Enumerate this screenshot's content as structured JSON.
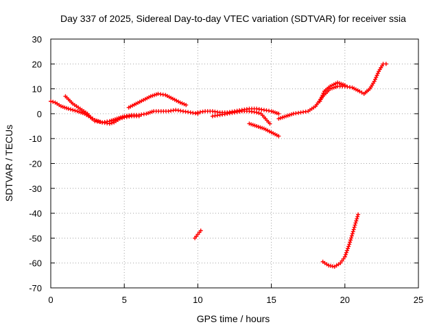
{
  "chart_data": {
    "type": "scatter",
    "title": "Day 337 of 2025, Sidereal Day-to-day VTEC variation (SDTVAR) for receiver ssia",
    "xlabel": "GPS time / hours",
    "ylabel": "SDTVAR / TECUs",
    "xlim": [
      0,
      25
    ],
    "ylim": [
      -70,
      30
    ],
    "x_ticks": [
      0,
      5,
      10,
      15,
      20,
      25
    ],
    "y_ticks": [
      -70,
      -60,
      -50,
      -40,
      -30,
      -20,
      -10,
      0,
      10,
      20,
      30
    ],
    "x_tick_labels": [
      "0",
      "5",
      "10",
      "15",
      "20",
      "25"
    ],
    "y_tick_labels": [
      "-70",
      "-60",
      "-50",
      "-40",
      "-30",
      "-20",
      "-10",
      "0",
      "10",
      "20",
      "30"
    ],
    "grid": true,
    "marker": "plus",
    "color": "#ff0000",
    "series": [
      {
        "name": "track-1",
        "points": [
          [
            0,
            5
          ],
          [
            0.3,
            4.5
          ],
          [
            0.7,
            3
          ],
          [
            1.2,
            2
          ],
          [
            1.8,
            1
          ],
          [
            2.3,
            0
          ],
          [
            2.7,
            -1.5
          ],
          [
            3,
            -2.5
          ],
          [
            3.5,
            -3.5
          ],
          [
            4,
            -4
          ],
          [
            4.3,
            -3.5
          ],
          [
            4.7,
            -2
          ],
          [
            5,
            -1.5
          ],
          [
            5.5,
            -1
          ],
          [
            6,
            -1
          ]
        ]
      },
      {
        "name": "track-2",
        "points": [
          [
            1,
            7
          ],
          [
            1.5,
            4
          ],
          [
            2,
            2
          ],
          [
            2.5,
            0
          ],
          [
            2.8,
            -2
          ]
        ]
      },
      {
        "name": "track-3",
        "points": [
          [
            3,
            -3
          ],
          [
            3.5,
            -3.5
          ],
          [
            4,
            -3
          ],
          [
            4.5,
            -2
          ],
          [
            5,
            -1
          ],
          [
            5.5,
            -0.5
          ],
          [
            6,
            -0.5
          ],
          [
            6.5,
            0
          ],
          [
            7,
            1
          ],
          [
            7.5,
            1
          ],
          [
            8,
            1
          ],
          [
            8.5,
            1.5
          ],
          [
            9,
            1
          ],
          [
            9.5,
            0.5
          ],
          [
            10,
            0
          ]
        ]
      },
      {
        "name": "track-4",
        "points": [
          [
            5.3,
            2.5
          ],
          [
            5.8,
            4
          ],
          [
            6.3,
            5.5
          ],
          [
            6.8,
            7
          ],
          [
            7.3,
            8
          ],
          [
            7.8,
            7.5
          ],
          [
            8.3,
            6
          ],
          [
            8.8,
            4.5
          ],
          [
            9.2,
            3.5
          ]
        ]
      },
      {
        "name": "track-5",
        "points": [
          [
            10,
            0.5
          ],
          [
            10.5,
            1
          ],
          [
            11,
            1
          ],
          [
            11.5,
            0.5
          ],
          [
            12,
            0.5
          ],
          [
            12.5,
            1
          ],
          [
            13,
            1.5
          ],
          [
            13.5,
            2
          ],
          [
            14,
            2
          ],
          [
            14.5,
            1.5
          ],
          [
            15,
            1
          ],
          [
            15.5,
            0
          ]
        ]
      },
      {
        "name": "track-6",
        "points": [
          [
            11,
            -1
          ],
          [
            11.5,
            -0.5
          ],
          [
            12,
            0
          ],
          [
            12.5,
            0.5
          ],
          [
            13,
            1
          ],
          [
            13.5,
            1
          ],
          [
            14,
            0.5
          ],
          [
            14.3,
            0
          ],
          [
            14.6,
            -2
          ],
          [
            14.9,
            -4
          ]
        ]
      },
      {
        "name": "track-7",
        "points": [
          [
            13.5,
            -4
          ],
          [
            14,
            -5
          ],
          [
            14.5,
            -6
          ],
          [
            15,
            -7.5
          ],
          [
            15.5,
            -9
          ]
        ]
      },
      {
        "name": "track-8",
        "points": [
          [
            15.5,
            -2
          ],
          [
            16,
            -1
          ],
          [
            16.5,
            0
          ],
          [
            17,
            0.5
          ],
          [
            17.5,
            1
          ],
          [
            18,
            3
          ],
          [
            18.5,
            7
          ],
          [
            19,
            10
          ],
          [
            19.5,
            11
          ],
          [
            20,
            11
          ],
          [
            20.5,
            10.5
          ],
          [
            21,
            9
          ],
          [
            21.3,
            8
          ],
          [
            21.7,
            10
          ],
          [
            22,
            13
          ],
          [
            22.3,
            17
          ],
          [
            22.6,
            20
          ],
          [
            22.8,
            20
          ]
        ]
      },
      {
        "name": "track-9",
        "points": [
          [
            18.3,
            5
          ],
          [
            18.6,
            9
          ],
          [
            19,
            11
          ],
          [
            19.5,
            12.5
          ],
          [
            20,
            11.5
          ]
        ]
      },
      {
        "name": "track-10",
        "points": [
          [
            9.8,
            -50
          ],
          [
            10,
            -48.5
          ],
          [
            10.2,
            -47
          ]
        ]
      },
      {
        "name": "track-11",
        "points": [
          [
            18.5,
            -59.5
          ],
          [
            18.9,
            -61
          ],
          [
            19.3,
            -61.5
          ],
          [
            19.7,
            -60
          ],
          [
            20,
            -57.5
          ],
          [
            20.3,
            -52.5
          ],
          [
            20.6,
            -46.5
          ],
          [
            20.9,
            -40.5
          ]
        ]
      }
    ]
  }
}
